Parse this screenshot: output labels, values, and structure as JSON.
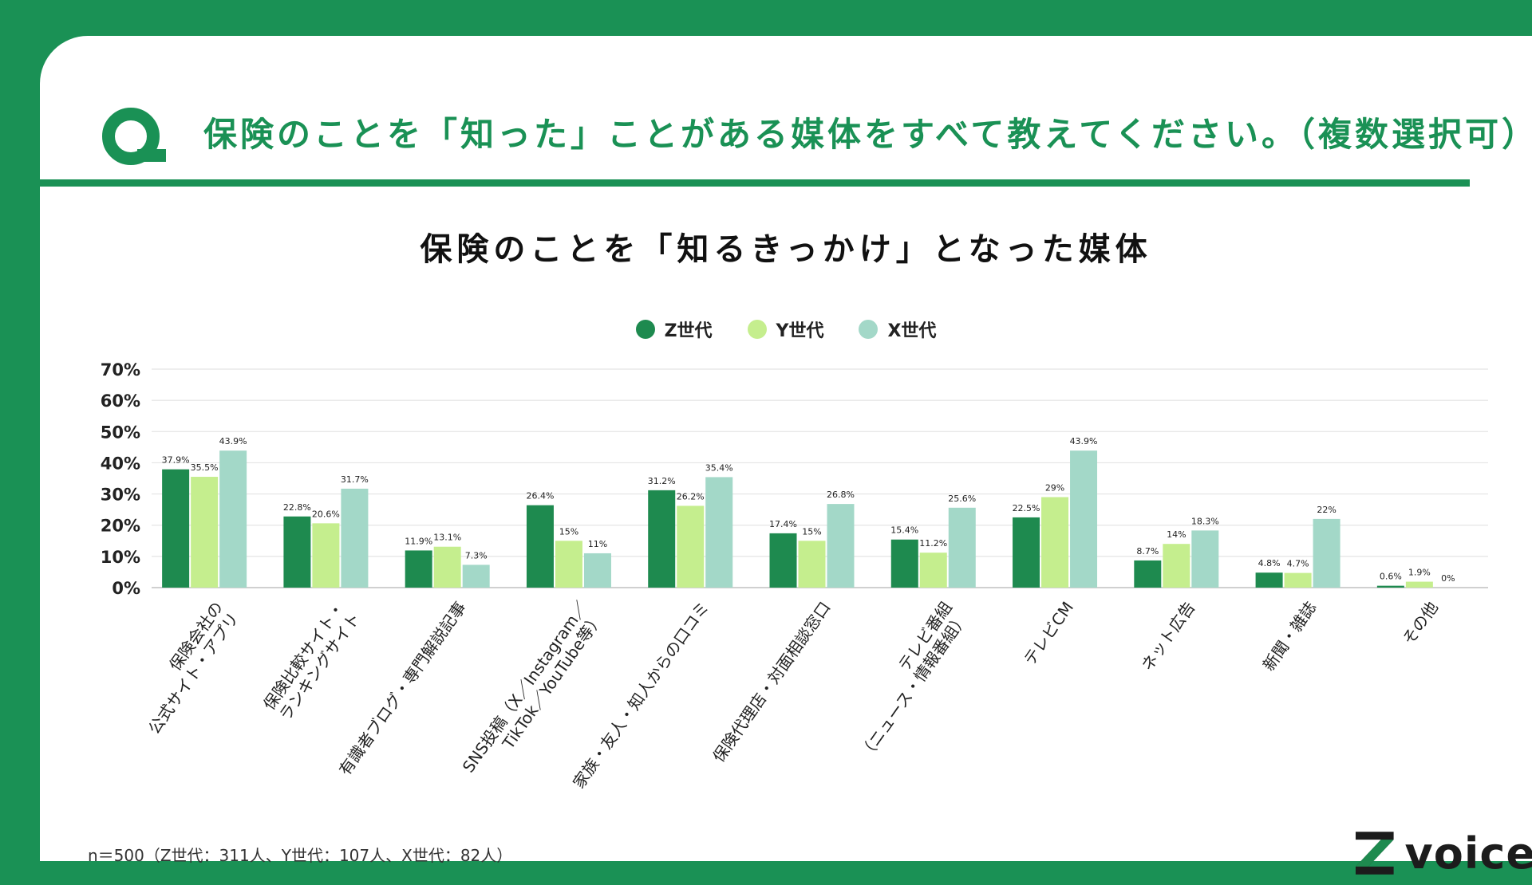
{
  "question": "保険のことを「知った」ことがある媒体をすべて教えてください。（複数選択可）",
  "footnote": "n＝500（Z世代：311人、Y世代：107人、X世代：82人）",
  "logo_text": "voice",
  "colors": {
    "accent": "#1a9155",
    "z": "#1e8a4f",
    "y": "#c5ee8e",
    "x": "#a3d8c8"
  },
  "chart_data": {
    "type": "bar",
    "title": "保険のことを「知るきっかけ」となった媒体",
    "ylim": [
      0,
      70
    ],
    "yticks": [
      "0%",
      "10%",
      "20%",
      "30%",
      "40%",
      "50%",
      "60%",
      "70%"
    ],
    "grid": true,
    "legend_position": "top-center",
    "categories": [
      [
        "保険会社の",
        "公式サイト・アプリ"
      ],
      [
        "保険比較サイト・",
        "ランキングサイト"
      ],
      [
        "有識者ブログ・専門解説記事"
      ],
      [
        "SNS投稿（X／Instagram／",
        "TikTok／YouTube等）"
      ],
      [
        "家族・友人・知人からの口コミ"
      ],
      [
        "保険代理店・対面相談窓口"
      ],
      [
        "テレビ番組",
        "（ニュース・情報番組）"
      ],
      [
        "テレビCM"
      ],
      [
        "ネット広告"
      ],
      [
        "新聞・雑誌"
      ],
      [
        "その他"
      ]
    ],
    "series": [
      {
        "name": "Z世代",
        "color": "#1e8a4f",
        "values": [
          37.9,
          22.8,
          11.9,
          26.4,
          31.2,
          17.4,
          15.4,
          22.5,
          8.7,
          4.8,
          0.6
        ],
        "labels": [
          "37.9%",
          "22.8%",
          "11.9%",
          "26.4%",
          "31.2%",
          "17.4%",
          "15.4%",
          "22.5%",
          "8.7%",
          "4.8%",
          "0.6%"
        ]
      },
      {
        "name": "Y世代",
        "color": "#c5ee8e",
        "values": [
          35.5,
          20.6,
          13.1,
          15,
          26.2,
          15,
          11.2,
          29,
          14,
          4.7,
          1.9
        ],
        "labels": [
          "35.5%",
          "20.6%",
          "13.1%",
          "15%",
          "26.2%",
          "15%",
          "11.2%",
          "29%",
          "14%",
          "4.7%",
          "1.9%"
        ]
      },
      {
        "name": "X世代",
        "color": "#a3d8c8",
        "values": [
          43.9,
          31.7,
          7.3,
          11,
          35.4,
          26.8,
          25.6,
          43.9,
          18.3,
          22,
          0
        ],
        "labels": [
          "43.9%",
          "31.7%",
          "7.3%",
          "11%",
          "35.4%",
          "26.8%",
          "25.6%",
          "43.9%",
          "18.3%",
          "22%",
          "0%"
        ]
      }
    ]
  }
}
